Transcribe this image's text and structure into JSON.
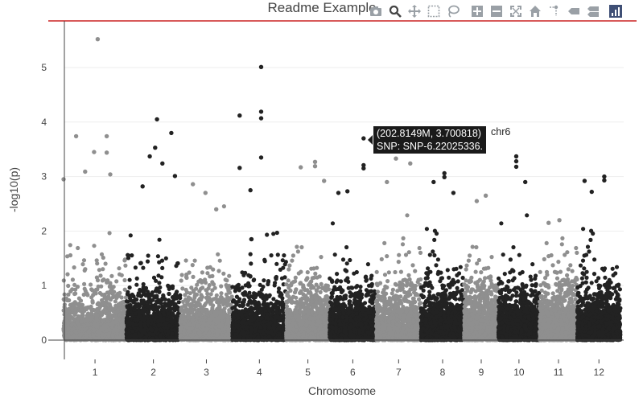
{
  "chart_data": {
    "type": "scatter",
    "title": "Readme Example",
    "xlabel": "Chromosome",
    "ylabel": "-log10(p)",
    "ylim": [
      0,
      5.7
    ],
    "yticks": [
      0,
      1,
      2,
      3,
      4,
      5
    ],
    "genomewide_line": 5.85,
    "genomewide_color": "#cc2222",
    "colors": {
      "odd": "#8f8f8f",
      "even": "#222222"
    },
    "grid": true,
    "chromosomes": [
      {
        "label": "1",
        "start": 0,
        "end": 35,
        "color": "#8f8f8f",
        "top_points": [
          [
            19,
            5.52
          ],
          [
            7,
            3.74
          ],
          [
            24,
            3.74
          ],
          [
            17,
            3.45
          ],
          [
            24,
            3.44
          ],
          [
            12,
            3.09
          ],
          [
            26,
            3.04
          ],
          [
            0,
            2.95
          ]
        ]
      },
      {
        "label": "2",
        "start": 35,
        "end": 65,
        "color": "#222222",
        "top_points": [
          [
            52,
            4.05
          ],
          [
            60,
            3.8
          ],
          [
            51,
            3.53
          ],
          [
            48,
            3.37
          ],
          [
            55,
            3.24
          ],
          [
            62,
            3.01
          ],
          [
            44,
            2.82
          ]
        ]
      },
      {
        "label": "3",
        "start": 65,
        "end": 94,
        "color": "#8f8f8f",
        "top_points": [
          [
            72,
            2.86
          ],
          [
            79,
            2.7
          ],
          [
            85,
            2.4
          ]
        ]
      },
      {
        "label": "4",
        "start": 94,
        "end": 124,
        "color": "#222222",
        "top_points": [
          [
            110,
            5.01
          ],
          [
            110,
            4.19
          ],
          [
            98,
            4.12
          ],
          [
            110,
            4.07
          ],
          [
            110,
            3.35
          ],
          [
            98,
            3.16
          ],
          [
            104,
            2.75
          ]
        ]
      },
      {
        "label": "5",
        "start": 124,
        "end": 148,
        "color": "#8f8f8f",
        "top_points": [
          [
            140,
            3.27
          ],
          [
            140,
            3.19
          ],
          [
            132,
            3.17
          ],
          [
            145,
            2.92
          ]
        ]
      },
      {
        "label": "6",
        "start": 148,
        "end": 174,
        "color": "#222222",
        "top_points": [
          [
            167,
            3.7
          ],
          [
            167,
            3.21
          ],
          [
            167,
            3.15
          ],
          [
            158,
            2.73
          ],
          [
            153,
            2.7
          ]
        ]
      },
      {
        "label": "7",
        "start": 174,
        "end": 199,
        "color": "#8f8f8f",
        "top_points": [
          [
            185,
            3.33
          ],
          [
            193,
            3.24
          ],
          [
            180,
            2.9
          ]
        ]
      },
      {
        "label": "8",
        "start": 199,
        "end": 223,
        "color": "#222222",
        "top_points": [
          [
            212,
            3.06
          ],
          [
            212,
            2.99
          ],
          [
            206,
            2.9
          ],
          [
            217,
            2.7
          ]
        ]
      },
      {
        "label": "9",
        "start": 223,
        "end": 242,
        "color": "#8f8f8f",
        "top_points": [
          [
            235,
            2.65
          ],
          [
            230,
            2.55
          ]
        ]
      },
      {
        "label": "10",
        "start": 242,
        "end": 265,
        "color": "#222222",
        "top_points": [
          [
            252,
            3.37
          ],
          [
            252,
            3.28
          ],
          [
            252,
            3.18
          ],
          [
            257,
            2.9
          ]
        ]
      },
      {
        "label": "11",
        "start": 265,
        "end": 286,
        "color": "#8f8f8f",
        "top_points": [
          [
            276,
            2.2
          ],
          [
            270,
            2.15
          ]
        ]
      },
      {
        "label": "12",
        "start": 286,
        "end": 310,
        "color": "#222222",
        "top_points": [
          [
            301,
            3.0
          ],
          [
            301,
            2.93
          ],
          [
            294,
            2.72
          ],
          [
            290,
            2.92
          ]
        ]
      }
    ]
  },
  "tooltip": {
    "coords": "(202.8149M, 3.700818)",
    "snp": "SNP: SNP-6.22025336.",
    "trace": "chr6"
  },
  "modebar": {
    "buttons": [
      "camera-icon",
      "zoom-icon",
      "pan-icon",
      "box-select-icon",
      "lasso-icon",
      "zoom-in-icon",
      "zoom-out-icon",
      "autoscale-icon",
      "reset-axes-icon",
      "spike-lines-icon",
      "closest-hover-icon",
      "compare-hover-icon",
      "plotly-logo-icon"
    ]
  }
}
